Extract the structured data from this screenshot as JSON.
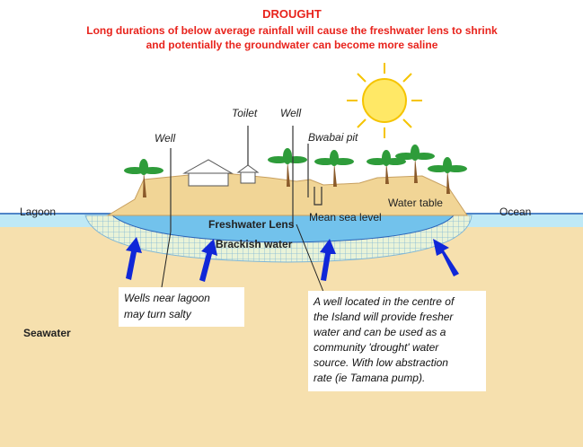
{
  "header": {
    "title": "DROUGHT",
    "lines": [
      "Long durations of below average rainfall will cause the freshwater lens to shrink",
      "and potentially the groundwater can become more saline"
    ]
  },
  "labels": [
    "Well",
    "Toilet",
    "Well",
    "Bwabai pit",
    "Lagoon",
    "Ocean",
    "Water table",
    "Freshwater Lens",
    "Mean sea level",
    "Brackish water",
    "Seawater"
  ],
  "callouts": [
    {
      "lines": [
        "Wells near lagoon",
        "may turn salty"
      ]
    },
    {
      "lines": [
        "A well located in the centre of",
        "the Island will provide fresher",
        "water and can be used as a",
        "community 'drought' water",
        "source. With low abstraction",
        "rate (ie Tamana pump)."
      ]
    }
  ]
}
